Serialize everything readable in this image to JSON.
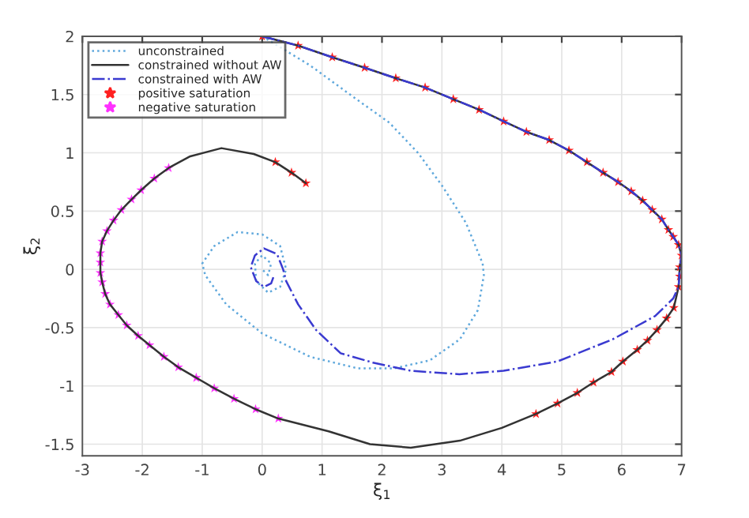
{
  "chart_data": {
    "type": "line",
    "xlabel": "ξ$_{1}$",
    "ylabel": "ξ$_{2}$",
    "xlim": [
      -3,
      7
    ],
    "ylim": [
      -1.6,
      2
    ],
    "xticks": [
      -3,
      -2,
      -1,
      0,
      1,
      2,
      3,
      4,
      5,
      6,
      7
    ],
    "yticks": [
      -1.5,
      -1,
      -0.5,
      0,
      0.5,
      1,
      1.5,
      2
    ],
    "grid": true,
    "legend": "top left",
    "series": [
      {
        "name": "unconstrained",
        "line_style": "dotted",
        "color": "#5fa8dc",
        "x": [
          0,
          0.8,
          1.6,
          2.12,
          2.6,
          3.0,
          3.4,
          3.68,
          3.7,
          3.6,
          3.3,
          2.8,
          2.2,
          1.6,
          0.8,
          0,
          -0.6,
          -0.95,
          -1.0,
          -0.8,
          -0.41,
          0,
          0.3,
          0.4,
          0.3,
          0.1,
          -0.1,
          -0.12,
          0,
          0.15,
          0.1,
          0
        ],
        "values": [
          2,
          1.75,
          1.45,
          1.26,
          1.0,
          0.72,
          0.4,
          0.05,
          -0.05,
          -0.35,
          -0.6,
          -0.78,
          -0.85,
          -0.85,
          -0.75,
          -0.55,
          -0.3,
          -0.05,
          0.05,
          0.2,
          0.32,
          0.3,
          0.2,
          0,
          -0.15,
          -0.2,
          -0.1,
          0.05,
          0.12,
          0.05,
          -0.05,
          0
        ]
      },
      {
        "name": "constrained without AW",
        "line_style": "solid",
        "color": "#333333",
        "x": [
          0,
          0.6,
          1.17,
          1.71,
          2.23,
          2.72,
          3.19,
          3.62,
          4.03,
          4.41,
          4.79,
          5.12,
          5.42,
          5.69,
          5.94,
          6.16,
          6.35,
          6.51,
          6.67,
          6.78,
          6.86,
          6.95,
          7.0,
          6.97,
          6.95,
          6.87,
          6.75,
          6.59,
          6.43,
          6.26,
          6.02,
          5.83,
          5.53,
          5.26,
          4.93,
          4.57,
          4.0,
          3.3,
          2.48,
          1.8,
          1.11,
          0.27,
          -0.11,
          -0.47,
          -0.8,
          -1.1,
          -1.4,
          -1.64,
          -1.88,
          -2.07,
          -2.26,
          -2.4,
          -2.54,
          -2.62,
          -2.67,
          -2.7,
          -2.7,
          -2.7,
          -2.67,
          -2.59,
          -2.48,
          -2.35,
          -2.18,
          -2.02,
          -1.8,
          -1.56,
          -1.2,
          -0.68,
          -0.14,
          0.22,
          0.49,
          0.73
        ],
        "values": [
          2,
          1.92,
          1.82,
          1.73,
          1.64,
          1.56,
          1.46,
          1.37,
          1.27,
          1.18,
          1.11,
          1.02,
          0.92,
          0.83,
          0.75,
          0.67,
          0.59,
          0.51,
          0.43,
          0.34,
          0.28,
          0.21,
          0.12,
          0.02,
          -0.15,
          -0.33,
          -0.42,
          -0.52,
          -0.61,
          -0.69,
          -0.79,
          -0.88,
          -0.97,
          -1.06,
          -1.15,
          -1.24,
          -1.36,
          -1.47,
          -1.53,
          -1.5,
          -1.39,
          -1.28,
          -1.2,
          -1.11,
          -1.02,
          -0.93,
          -0.84,
          -0.75,
          -0.65,
          -0.57,
          -0.48,
          -0.39,
          -0.3,
          -0.21,
          -0.11,
          -0.03,
          0.06,
          0.14,
          0.24,
          0.33,
          0.42,
          0.51,
          0.6,
          0.68,
          0.78,
          0.87,
          0.97,
          1.04,
          0.99,
          0.92,
          0.83,
          0.74
        ]
      },
      {
        "name": "constrained with AW",
        "line_style": "dashdot",
        "color": "#3a3ad0",
        "x": [
          0,
          0.6,
          1.17,
          1.71,
          2.23,
          2.72,
          3.19,
          3.62,
          4.03,
          4.41,
          4.79,
          5.12,
          5.42,
          5.69,
          5.94,
          6.16,
          6.35,
          6.51,
          6.67,
          6.78,
          6.86,
          6.95,
          7.0,
          6.97,
          6.95,
          6.86,
          6.56,
          5.85,
          4.93,
          4.03,
          3.29,
          2.48,
          1.85,
          1.31,
          0.9,
          0.6,
          0.4,
          0.35,
          0.25,
          0.03,
          -0.12,
          -0.19,
          -0.1,
          0.03,
          0.15,
          0.2
        ],
        "values": [
          2,
          1.92,
          1.82,
          1.73,
          1.64,
          1.56,
          1.46,
          1.37,
          1.27,
          1.18,
          1.11,
          1.02,
          0.92,
          0.83,
          0.75,
          0.67,
          0.59,
          0.51,
          0.43,
          0.34,
          0.28,
          0.21,
          0.12,
          0.02,
          -0.15,
          -0.25,
          -0.4,
          -0.6,
          -0.79,
          -0.87,
          -0.9,
          -0.87,
          -0.8,
          -0.72,
          -0.52,
          -0.3,
          -0.1,
          0.0,
          0.13,
          0.18,
          0.12,
          0.02,
          -0.1,
          -0.15,
          -0.12,
          -0.05
        ]
      },
      {
        "name": "positive saturation",
        "type": "scatter",
        "marker": "star",
        "color": "#ff2020",
        "x": [
          0,
          0.6,
          1.17,
          1.71,
          2.23,
          2.72,
          3.19,
          3.62,
          4.03,
          4.41,
          4.79,
          5.12,
          5.42,
          5.69,
          5.94,
          6.16,
          6.35,
          6.51,
          6.67,
          6.78,
          6.86,
          6.95,
          7.0,
          6.97,
          6.97,
          6.95,
          6.87,
          6.75,
          6.59,
          6.43,
          6.26,
          6.02,
          5.83,
          5.53,
          5.26,
          4.93,
          4.57,
          0.22,
          0.49,
          0.73
        ],
        "values": [
          2,
          1.92,
          1.82,
          1.73,
          1.64,
          1.56,
          1.46,
          1.37,
          1.27,
          1.18,
          1.11,
          1.02,
          0.92,
          0.83,
          0.75,
          0.67,
          0.59,
          0.51,
          0.43,
          0.34,
          0.28,
          0.21,
          0.12,
          0.02,
          -0.06,
          -0.15,
          -0.33,
          -0.42,
          -0.52,
          -0.61,
          -0.69,
          -0.79,
          -0.88,
          -0.97,
          -1.06,
          -1.15,
          -1.24,
          0.92,
          0.83,
          0.74
        ]
      },
      {
        "name": "negative saturation",
        "type": "scatter",
        "marker": "star",
        "color": "#ff30ff",
        "x": [
          0.27,
          -0.11,
          -0.47,
          -0.8,
          -1.1,
          -1.4,
          -1.64,
          -1.88,
          -2.07,
          -2.26,
          -2.4,
          -2.54,
          -2.62,
          -2.67,
          -2.7,
          -2.7,
          -2.7,
          -2.67,
          -2.59,
          -2.48,
          -2.35,
          -2.18,
          -2.02,
          -1.8,
          -1.56
        ],
        "values": [
          -1.28,
          -1.2,
          -1.11,
          -1.02,
          -0.93,
          -0.84,
          -0.75,
          -0.65,
          -0.57,
          -0.48,
          -0.39,
          -0.3,
          -0.21,
          -0.11,
          -0.03,
          0.06,
          0.14,
          0.24,
          0.33,
          0.42,
          0.51,
          0.6,
          0.68,
          0.78,
          0.87
        ]
      }
    ]
  }
}
